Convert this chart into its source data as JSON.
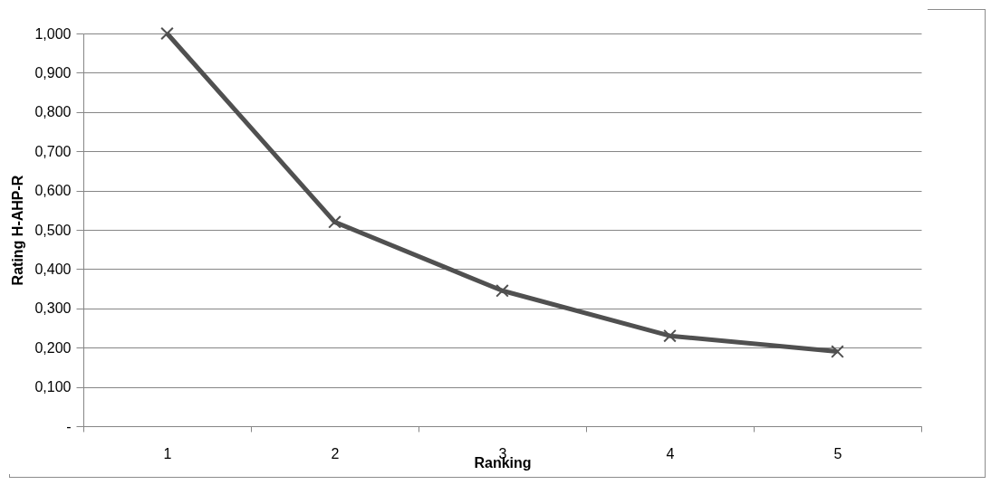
{
  "chart_data": {
    "type": "line",
    "xlabel": "Ranking",
    "ylabel": "Rating H-AHP-R",
    "categories": [
      "1",
      "2",
      "3",
      "4",
      "5"
    ],
    "series": [
      {
        "color": "#505050",
        "values": [
          1.0,
          0.52,
          0.345,
          0.23,
          0.19
        ]
      }
    ],
    "ylim": [
      0,
      1
    ],
    "yticks": [
      {
        "value": 0,
        "label": "-"
      },
      {
        "value": 0.1,
        "label": "0,100"
      },
      {
        "value": 0.2,
        "label": "0,200"
      },
      {
        "value": 0.3,
        "label": "0,300"
      },
      {
        "value": 0.4,
        "label": "0,400"
      },
      {
        "value": 0.5,
        "label": "0,500"
      },
      {
        "value": 0.6,
        "label": "0,600"
      },
      {
        "value": 0.7,
        "label": "0,700"
      },
      {
        "value": 0.8,
        "label": "0,800"
      },
      {
        "value": 0.9,
        "label": "0,900"
      },
      {
        "value": 1.0,
        "label": "1,000"
      }
    ],
    "grid": "y",
    "marker": "cross",
    "line_style": "solid",
    "legend": false
  }
}
